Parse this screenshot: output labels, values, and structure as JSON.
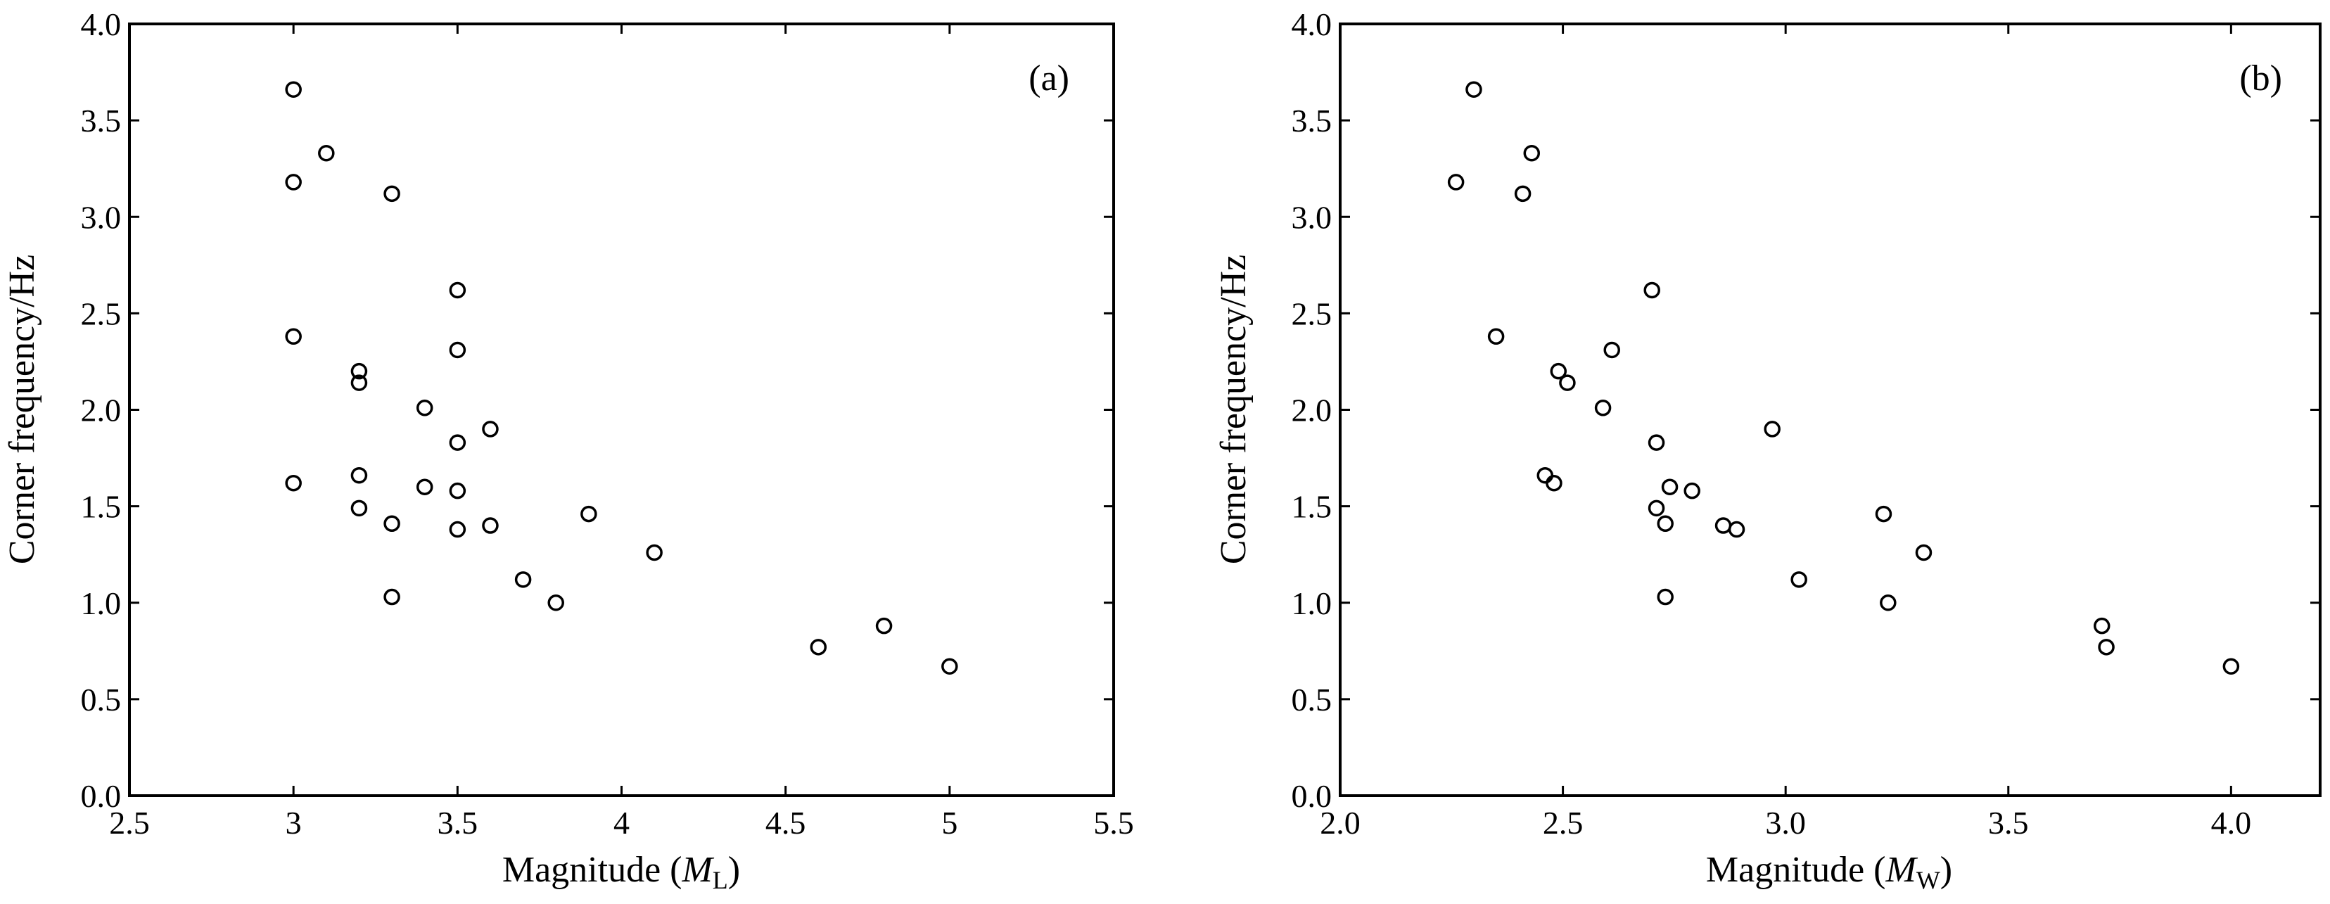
{
  "chart_data": [
    {
      "type": "scatter",
      "panel_label": "(a)",
      "xlabel_prefix": "Magnitude (",
      "xlabel_var": "M",
      "xlabel_sub": "L",
      "xlabel_suffix": ")",
      "ylabel": "Corner frequency/Hz",
      "xlim": [
        2.5,
        5.5
      ],
      "ylim": [
        0.0,
        4.0
      ],
      "xticks": [
        "2.5",
        "3",
        "3.5",
        "4",
        "4.5",
        "5",
        "5.5"
      ],
      "xtick_values": [
        2.5,
        3,
        3.5,
        4,
        4.5,
        5,
        5.5
      ],
      "yticks": [
        "0.0",
        "0.5",
        "1.0",
        "1.5",
        "2.0",
        "2.5",
        "3.0",
        "3.5",
        "4.0"
      ],
      "ytick_values": [
        0,
        0.5,
        1,
        1.5,
        2,
        2.5,
        3,
        3.5,
        4
      ],
      "grid": false,
      "marker": "open-circle",
      "points": [
        [
          3.0,
          3.66
        ],
        [
          3.1,
          3.33
        ],
        [
          3.0,
          3.18
        ],
        [
          3.3,
          3.12
        ],
        [
          3.5,
          2.62
        ],
        [
          3.0,
          2.38
        ],
        [
          3.5,
          2.31
        ],
        [
          3.2,
          2.2
        ],
        [
          3.2,
          2.14
        ],
        [
          3.4,
          2.01
        ],
        [
          3.6,
          1.9
        ],
        [
          3.5,
          1.83
        ],
        [
          3.2,
          1.66
        ],
        [
          3.0,
          1.62
        ],
        [
          3.4,
          1.6
        ],
        [
          3.5,
          1.58
        ],
        [
          3.2,
          1.49
        ],
        [
          3.9,
          1.46
        ],
        [
          3.3,
          1.41
        ],
        [
          3.6,
          1.4
        ],
        [
          3.5,
          1.38
        ],
        [
          4.1,
          1.26
        ],
        [
          3.7,
          1.12
        ],
        [
          3.3,
          1.03
        ],
        [
          3.8,
          1.0
        ],
        [
          4.8,
          0.88
        ],
        [
          4.6,
          0.77
        ],
        [
          5.0,
          0.67
        ]
      ]
    },
    {
      "type": "scatter",
      "panel_label": "(b)",
      "xlabel_prefix": "Magnitude (",
      "xlabel_var": "M",
      "xlabel_sub": "W",
      "xlabel_suffix": ")",
      "ylabel": "Corner frequency/Hz",
      "xlim": [
        2.0,
        4.2
      ],
      "ylim": [
        0.0,
        4.0
      ],
      "xticks": [
        "2.0",
        "2.5",
        "3.0",
        "3.5",
        "4.0"
      ],
      "xtick_values": [
        2.0,
        2.5,
        3.0,
        3.5,
        4.0
      ],
      "yticks": [
        "0.0",
        "0.5",
        "1.0",
        "1.5",
        "2.0",
        "2.5",
        "3.0",
        "3.5",
        "4.0"
      ],
      "ytick_values": [
        0,
        0.5,
        1,
        1.5,
        2,
        2.5,
        3,
        3.5,
        4
      ],
      "grid": false,
      "marker": "open-circle",
      "points": [
        [
          2.3,
          3.66
        ],
        [
          2.43,
          3.33
        ],
        [
          2.26,
          3.18
        ],
        [
          2.41,
          3.12
        ],
        [
          2.7,
          2.62
        ],
        [
          2.35,
          2.38
        ],
        [
          2.61,
          2.31
        ],
        [
          2.49,
          2.2
        ],
        [
          2.51,
          2.14
        ],
        [
          2.59,
          2.01
        ],
        [
          2.97,
          1.9
        ],
        [
          2.71,
          1.83
        ],
        [
          2.46,
          1.66
        ],
        [
          2.48,
          1.62
        ],
        [
          2.74,
          1.6
        ],
        [
          2.79,
          1.58
        ],
        [
          2.71,
          1.49
        ],
        [
          3.22,
          1.46
        ],
        [
          2.73,
          1.41
        ],
        [
          2.86,
          1.4
        ],
        [
          2.89,
          1.38
        ],
        [
          3.31,
          1.26
        ],
        [
          3.03,
          1.12
        ],
        [
          2.73,
          1.03
        ],
        [
          3.23,
          1.0
        ],
        [
          3.71,
          0.88
        ],
        [
          3.72,
          0.77
        ],
        [
          4.0,
          0.67
        ]
      ]
    }
  ]
}
